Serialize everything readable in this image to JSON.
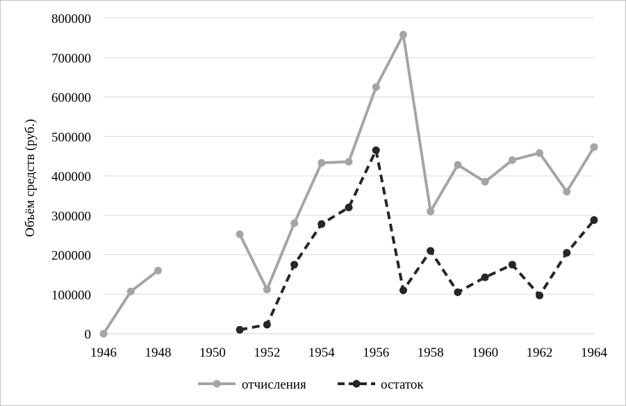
{
  "chart_data": {
    "type": "line",
    "title": "",
    "xlabel": "",
    "ylabel": "Объём средств (руб.)",
    "xlim": [
      1946,
      1964
    ],
    "ylim": [
      0,
      800000
    ],
    "x_ticks": [
      "1946",
      "1948",
      "1950",
      "1952",
      "1954",
      "1956",
      "1958",
      "1960",
      "1962",
      "1964"
    ],
    "y_ticks": [
      "0",
      "100000",
      "200000",
      "300000",
      "400000",
      "500000",
      "600000",
      "700000",
      "800000"
    ],
    "grid": "horizontal",
    "legend_position": "bottom",
    "series": [
      {
        "name": "отчисления",
        "color": "#a5a5a5",
        "style": "solid",
        "points": [
          [
            1946,
            0
          ],
          [
            1947,
            107000
          ],
          [
            1948,
            160000
          ],
          [
            1950,
            null
          ],
          [
            1951,
            252000
          ],
          [
            1952,
            112000
          ],
          [
            1953,
            280000
          ],
          [
            1954,
            433000
          ],
          [
            1955,
            436000
          ],
          [
            1956,
            625000
          ],
          [
            1957,
            758000
          ],
          [
            1958,
            310000
          ],
          [
            1959,
            428000
          ],
          [
            1960,
            385000
          ],
          [
            1961,
            440000
          ],
          [
            1962,
            458000
          ],
          [
            1963,
            360000
          ],
          [
            1964,
            473000
          ]
        ]
      },
      {
        "name": "остаток",
        "color": "#262626",
        "style": "dashed",
        "points": [
          [
            1951,
            10000
          ],
          [
            1952,
            23000
          ],
          [
            1953,
            175000
          ],
          [
            1954,
            278000
          ],
          [
            1955,
            320000
          ],
          [
            1956,
            465000
          ],
          [
            1957,
            110000
          ],
          [
            1958,
            210000
          ],
          [
            1959,
            105000
          ],
          [
            1960,
            143000
          ],
          [
            1961,
            175000
          ],
          [
            1962,
            97000
          ],
          [
            1963,
            205000
          ],
          [
            1964,
            288000
          ]
        ]
      }
    ]
  }
}
